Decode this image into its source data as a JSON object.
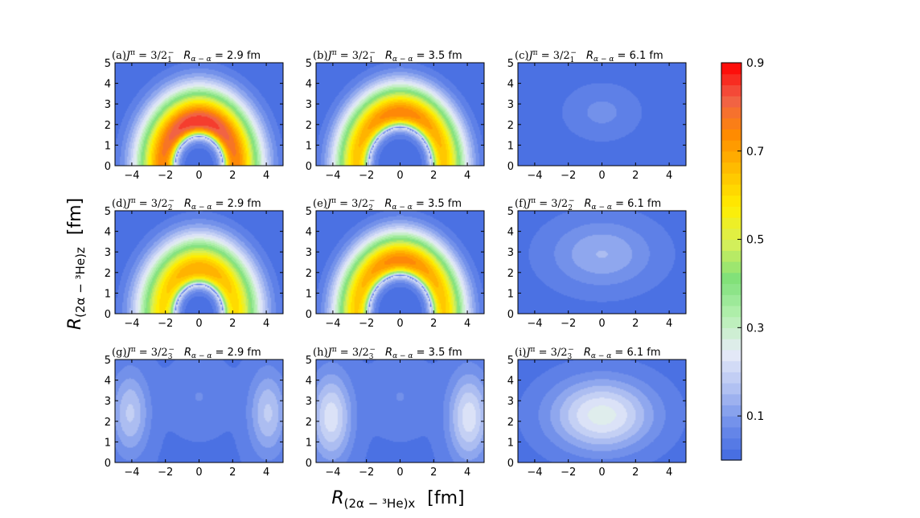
{
  "chart_data": {
    "type": "heatmap",
    "xlabel": "R_{(2α − ³He)x}",
    "xlabel_main": "R",
    "xlabel_sub": "(2α − ³He)x",
    "xlabel_unit": "[fm]",
    "ylabel": "R_{(2α − ³He)z}",
    "ylabel_main": "R",
    "ylabel_sub": "(2α − ³He)z",
    "ylabel_unit": "[fm]",
    "xlim": [
      -5,
      5
    ],
    "ylim": [
      0,
      5
    ],
    "xticks": [
      -4,
      -2,
      0,
      2,
      4
    ],
    "yticks": [
      0,
      1,
      2,
      3,
      4,
      5
    ],
    "colorbar": {
      "vmin": 0.0,
      "vmax": 0.9,
      "ticks": [
        0.1,
        0.3,
        0.5,
        0.7,
        0.9
      ],
      "colors": [
        "#4169e1",
        "#6f8eea",
        "#b2c2f2",
        "#e8ecf8",
        "#b5f0b0",
        "#7ee07a",
        "#d6f05a",
        "#ffee00",
        "#ffc000",
        "#ff8c00",
        "#f06048",
        "#ff0000"
      ]
    },
    "panels": [
      {
        "id": "a",
        "label": "(a)",
        "state_sup": "π",
        "state_val": " = 3/2",
        "state_sub": "1",
        "state_sup2": "−",
        "r_label": "α − α",
        "r_value": "= 2.9 fm",
        "pattern": "shell",
        "peak": 0.9,
        "inner_r": 1.4,
        "outer_r": 4.0,
        "center_z": 1.8,
        "tail": 0.12
      },
      {
        "id": "b",
        "label": "(b)",
        "state_sup": "π",
        "state_val": " = 3/2",
        "state_sub": "1",
        "state_sup2": "−",
        "r_label": "α − α",
        "r_value": "= 3.5 fm",
        "pattern": "shell",
        "peak": 0.79,
        "inner_r": 1.85,
        "outer_r": 4.1,
        "center_z": 2.2,
        "tail": 0.12
      },
      {
        "id": "c",
        "label": "(c)",
        "state_sup": "π",
        "state_val": " = 3/2",
        "state_sub": "1",
        "state_sup2": "−",
        "r_label": "α − α",
        "r_value": "= 6.1 fm",
        "pattern": "blob",
        "peak": 0.08,
        "center_x": 0,
        "center_z": 2.6,
        "sx": 2.0,
        "sz": 1.2
      },
      {
        "id": "d",
        "label": "(d)",
        "state_sup": "π",
        "state_val": " = 3/2",
        "state_sub": "2",
        "state_sup2": "−",
        "r_label": "α − α",
        "r_value": "= 2.9 fm",
        "pattern": "shell",
        "peak": 0.72,
        "inner_r": 1.4,
        "outer_r": 4.0,
        "center_z": 2.0,
        "tail": 0.12
      },
      {
        "id": "e",
        "label": "(e)",
        "state_sup": "π",
        "state_val": " = 3/2",
        "state_sub": "2",
        "state_sup2": "−",
        "r_label": "α − α",
        "r_value": "= 3.5 fm",
        "pattern": "shell",
        "peak": 0.78,
        "inner_r": 1.85,
        "outer_r": 4.1,
        "center_z": 2.4,
        "tail": 0.12
      },
      {
        "id": "f",
        "label": "(f)",
        "state_sup": "π",
        "state_val": " = 3/2",
        "state_sub": "2",
        "state_sup2": "−",
        "r_label": "α − α",
        "r_value": "= 6.1 fm",
        "pattern": "blob",
        "peak": 0.14,
        "center_x": 0,
        "center_z": 2.9,
        "sx": 3.0,
        "sz": 1.6
      },
      {
        "id": "g",
        "label": "(g)",
        "state_sup": "π",
        "state_val": " = 3/2",
        "state_sub": "3",
        "state_sup2": "−",
        "r_label": "α − α",
        "r_value": "= 2.9 fm",
        "pattern": "wings",
        "peak": 0.18,
        "wing_x": 4.1,
        "center_z": 2.4,
        "sx": 1.1,
        "sz": 2.0
      },
      {
        "id": "h",
        "label": "(h)",
        "state_sup": "π",
        "state_val": " = 3/2",
        "state_sub": "3",
        "state_sup2": "−",
        "r_label": "α − α",
        "r_value": "= 3.5 fm",
        "pattern": "wings",
        "peak": 0.23,
        "wing_x": 4.1,
        "center_z": 2.2,
        "sx": 1.2,
        "sz": 2.1
      },
      {
        "id": "i",
        "label": "(i)",
        "state_sup": "π",
        "state_val": " = 3/2",
        "state_sub": "3",
        "state_sup2": "−",
        "r_label": "α − α",
        "r_value": "= 6.1 fm",
        "pattern": "blob",
        "peak": 0.26,
        "center_x": 0,
        "center_z": 2.3,
        "sx": 3.0,
        "sz": 1.7
      }
    ]
  }
}
